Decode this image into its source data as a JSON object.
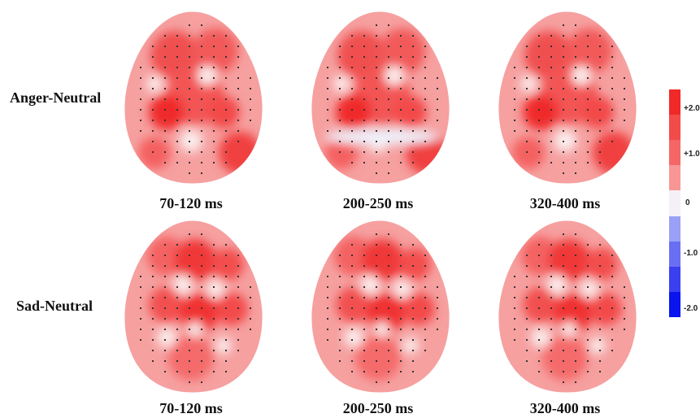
{
  "rows": [
    {
      "label": "Anger-Neutral",
      "times": [
        "70-120 ms",
        "200-250 ms",
        "320-400 ms"
      ]
    },
    {
      "label": "Sad-Neutral",
      "times": [
        "70-120 ms",
        "200-250 ms",
        "320-400 ms"
      ]
    }
  ],
  "colorbar": {
    "ticks": [
      "+2.0",
      "+1.0",
      "0",
      "-1.0",
      "-2.0"
    ],
    "colors": [
      "#f02828",
      "#f34a4a",
      "#f56666",
      "#f89696",
      "#f5f0f8",
      "#9aa0f5",
      "#6a6ef3",
      "#3a3ff0",
      "#0a14ee"
    ]
  }
}
